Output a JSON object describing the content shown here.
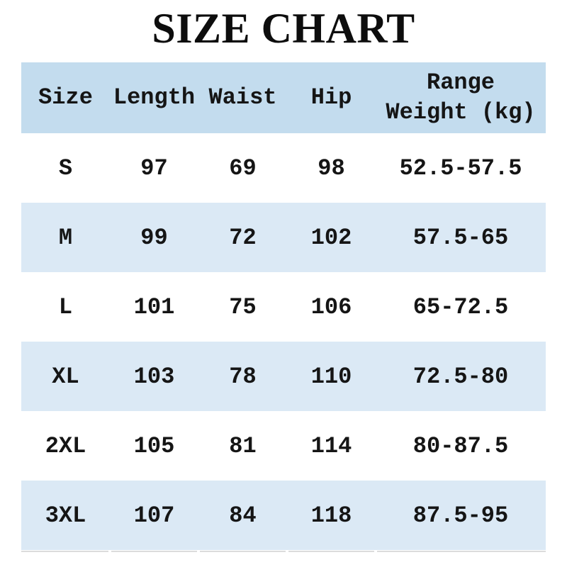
{
  "title": "SIZE CHART",
  "colors": {
    "header_bg": "#c3dcee",
    "alt_row_bg": "#dbe9f5",
    "text": "#151515",
    "bottom_border": "#dcdcdc",
    "page_bg": "#ffffff"
  },
  "table": {
    "columns": [
      {
        "label": "Size"
      },
      {
        "label": "Length"
      },
      {
        "label": "Waist"
      },
      {
        "label": "Hip"
      },
      {
        "line1": "Range",
        "line2": "Weight (kg)"
      }
    ],
    "rows": [
      {
        "size": "S",
        "length": "97",
        "waist": "69",
        "hip": "98",
        "weight_range": "52.5-57.5"
      },
      {
        "size": "M",
        "length": "99",
        "waist": "72",
        "hip": "102",
        "weight_range": "57.5-65"
      },
      {
        "size": "L",
        "length": "101",
        "waist": "75",
        "hip": "106",
        "weight_range": "65-72.5"
      },
      {
        "size": "XL",
        "length": "103",
        "waist": "78",
        "hip": "110",
        "weight_range": "72.5-80"
      },
      {
        "size": "2XL",
        "length": "105",
        "waist": "81",
        "hip": "114",
        "weight_range": "80-87.5"
      },
      {
        "size": "3XL",
        "length": "107",
        "waist": "84",
        "hip": "118",
        "weight_range": "87.5-95"
      }
    ]
  },
  "chart_data": {
    "type": "table",
    "title": "SIZE CHART",
    "columns": [
      "Size",
      "Length",
      "Waist",
      "Hip",
      "Range Weight (kg)"
    ],
    "rows": [
      [
        "S",
        97,
        69,
        98,
        "52.5-57.5"
      ],
      [
        "M",
        99,
        72,
        102,
        "57.5-65"
      ],
      [
        "L",
        101,
        75,
        106,
        "65-72.5"
      ],
      [
        "XL",
        103,
        78,
        110,
        "72.5-80"
      ],
      [
        "2XL",
        105,
        81,
        114,
        "80-87.5"
      ],
      [
        "3XL",
        107,
        84,
        118,
        "87.5-95"
      ]
    ]
  }
}
